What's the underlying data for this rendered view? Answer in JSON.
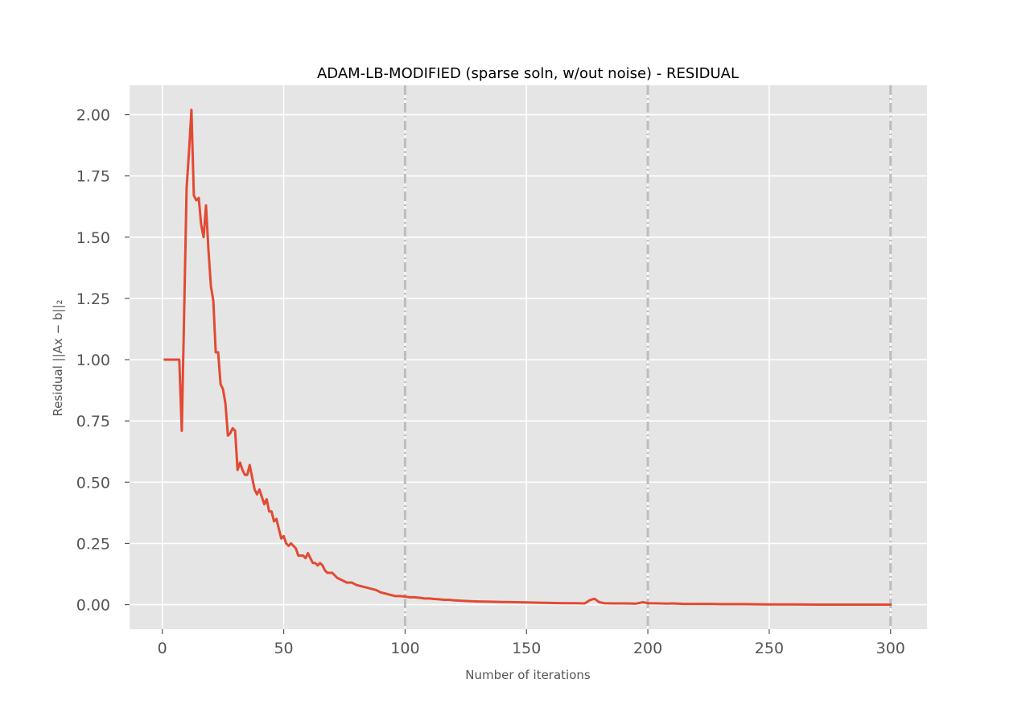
{
  "chart_data": {
    "type": "line",
    "title": "ADAM-LB-MODIFIED (sparse soln, w/out noise) - RESIDUAL",
    "xlabel": "Number of iterations",
    "ylabel": "Residual ||Ax − b||₂",
    "xlim": [
      -13.5,
      315
    ],
    "ylim": [
      -0.1,
      2.12
    ],
    "xticks": [
      0,
      50,
      100,
      150,
      200,
      250,
      300
    ],
    "xtick_labels": [
      "0",
      "50",
      "100",
      "150",
      "200",
      "250",
      "300"
    ],
    "yticks": [
      0,
      0.25,
      0.5,
      0.75,
      1.0,
      1.25,
      1.5,
      1.75,
      2.0
    ],
    "ytick_labels": [
      "0.00",
      "0.25",
      "0.50",
      "0.75",
      "1.00",
      "1.25",
      "1.50",
      "1.75",
      "2.00"
    ],
    "grid": true,
    "vlines": [
      100,
      200,
      300
    ],
    "colors": {
      "line": "#e24a33",
      "plot_background": "#e5e5e5",
      "grid": "#ffffff",
      "vline": "#bdbdbd"
    },
    "series": [
      {
        "x": [
          1,
          2,
          3,
          4,
          5,
          6,
          7,
          8,
          9,
          10,
          11,
          12,
          13,
          14,
          15,
          16,
          17,
          18,
          19,
          20,
          21,
          22,
          23,
          24,
          25,
          26,
          27,
          28,
          29,
          30,
          31,
          32,
          33,
          34,
          35,
          36,
          37,
          38,
          39,
          40,
          41,
          42,
          43,
          44,
          45,
          46,
          47,
          48,
          49,
          50,
          51,
          52,
          53,
          54,
          55,
          56,
          57,
          58,
          59,
          60,
          61,
          62,
          63,
          64,
          65,
          66,
          67,
          68,
          69,
          70,
          72,
          74,
          76,
          78,
          80,
          82,
          84,
          86,
          88,
          90,
          92,
          94,
          96,
          98,
          100,
          102,
          104,
          106,
          108,
          110,
          112,
          114,
          116,
          118,
          120,
          125,
          130,
          135,
          140,
          145,
          150,
          155,
          160,
          165,
          170,
          174,
          176,
          178,
          180,
          182,
          185,
          190,
          195,
          198,
          200,
          205,
          208,
          210,
          215,
          220,
          225,
          230,
          240,
          250,
          260,
          270,
          280,
          290,
          300
        ],
        "values": [
          1.0,
          1.0,
          1.0,
          1.0,
          1.0,
          1.0,
          1.0,
          0.71,
          1.2,
          1.7,
          1.85,
          2.02,
          1.67,
          1.65,
          1.66,
          1.55,
          1.5,
          1.63,
          1.45,
          1.3,
          1.24,
          1.03,
          1.03,
          0.9,
          0.88,
          0.82,
          0.69,
          0.7,
          0.72,
          0.71,
          0.55,
          0.58,
          0.55,
          0.53,
          0.53,
          0.57,
          0.52,
          0.47,
          0.45,
          0.47,
          0.44,
          0.41,
          0.43,
          0.38,
          0.38,
          0.34,
          0.35,
          0.31,
          0.27,
          0.28,
          0.25,
          0.24,
          0.25,
          0.24,
          0.23,
          0.2,
          0.2,
          0.2,
          0.19,
          0.21,
          0.19,
          0.17,
          0.17,
          0.16,
          0.17,
          0.16,
          0.14,
          0.13,
          0.13,
          0.13,
          0.11,
          0.1,
          0.09,
          0.09,
          0.08,
          0.075,
          0.07,
          0.065,
          0.06,
          0.05,
          0.045,
          0.04,
          0.035,
          0.035,
          0.033,
          0.03,
          0.03,
          0.028,
          0.025,
          0.025,
          0.023,
          0.022,
          0.02,
          0.02,
          0.018,
          0.015,
          0.013,
          0.012,
          0.011,
          0.01,
          0.009,
          0.008,
          0.007,
          0.006,
          0.006,
          0.005,
          0.018,
          0.024,
          0.01,
          0.006,
          0.005,
          0.005,
          0.004,
          0.01,
          0.006,
          0.005,
          0.004,
          0.005,
          0.003,
          0.003,
          0.003,
          0.002,
          0.002,
          0.001,
          0.001,
          0.0,
          0.0,
          0.0,
          0.0
        ]
      }
    ]
  }
}
